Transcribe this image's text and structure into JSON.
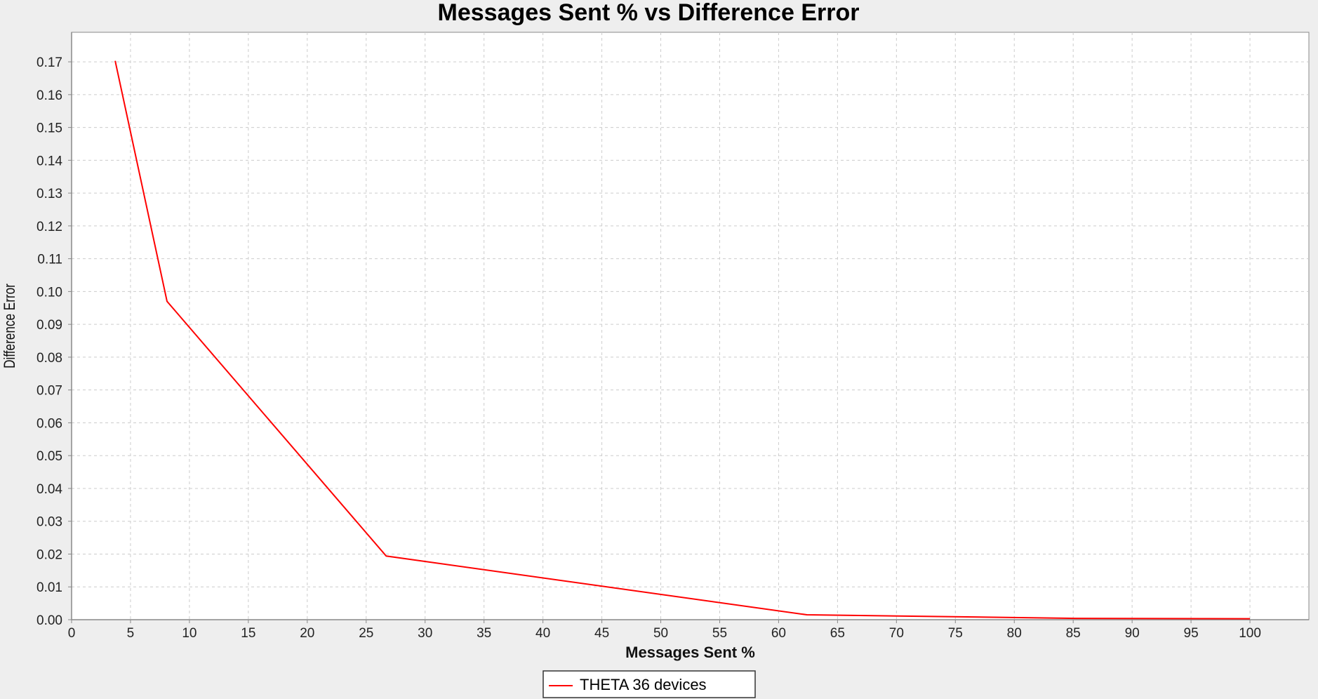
{
  "chart_data": {
    "type": "line",
    "title": "Messages Sent % vs Difference Error",
    "xlabel": "Messages Sent %",
    "ylabel": "Difference Error",
    "xlim": [
      0,
      105
    ],
    "ylim": [
      0,
      0.179
    ],
    "xticks": [
      0,
      5,
      10,
      15,
      20,
      25,
      30,
      35,
      40,
      45,
      50,
      55,
      60,
      65,
      70,
      75,
      80,
      85,
      90,
      95,
      100
    ],
    "xtick_labels": [
      "0",
      "5",
      "10",
      "15",
      "20",
      "25",
      "30",
      "35",
      "40",
      "45",
      "50",
      "55",
      "60",
      "65",
      "70",
      "75",
      "80",
      "85",
      "90",
      "95",
      "100"
    ],
    "yticks": [
      0,
      0.01,
      0.02,
      0.03,
      0.04,
      0.05,
      0.06,
      0.07,
      0.08,
      0.09,
      0.1,
      0.11,
      0.12,
      0.13,
      0.14,
      0.15,
      0.16,
      0.17
    ],
    "ytick_labels": [
      "0.00",
      "0.01",
      "0.02",
      "0.03",
      "0.04",
      "0.05",
      "0.06",
      "0.07",
      "0.08",
      "0.09",
      "0.10",
      "0.11",
      "0.12",
      "0.13",
      "0.14",
      "0.15",
      "0.16",
      "0.17"
    ],
    "grid": true,
    "legend_position": "bottom-center",
    "series": [
      {
        "name": "THETA 36 devices",
        "color": "#ff0000",
        "x": [
          3.7,
          8.1,
          26.7,
          62.4,
          85.2,
          100
        ],
        "y": [
          0.1703,
          0.097,
          0.0194,
          0.0015,
          0.0004,
          0.0003
        ]
      }
    ]
  }
}
